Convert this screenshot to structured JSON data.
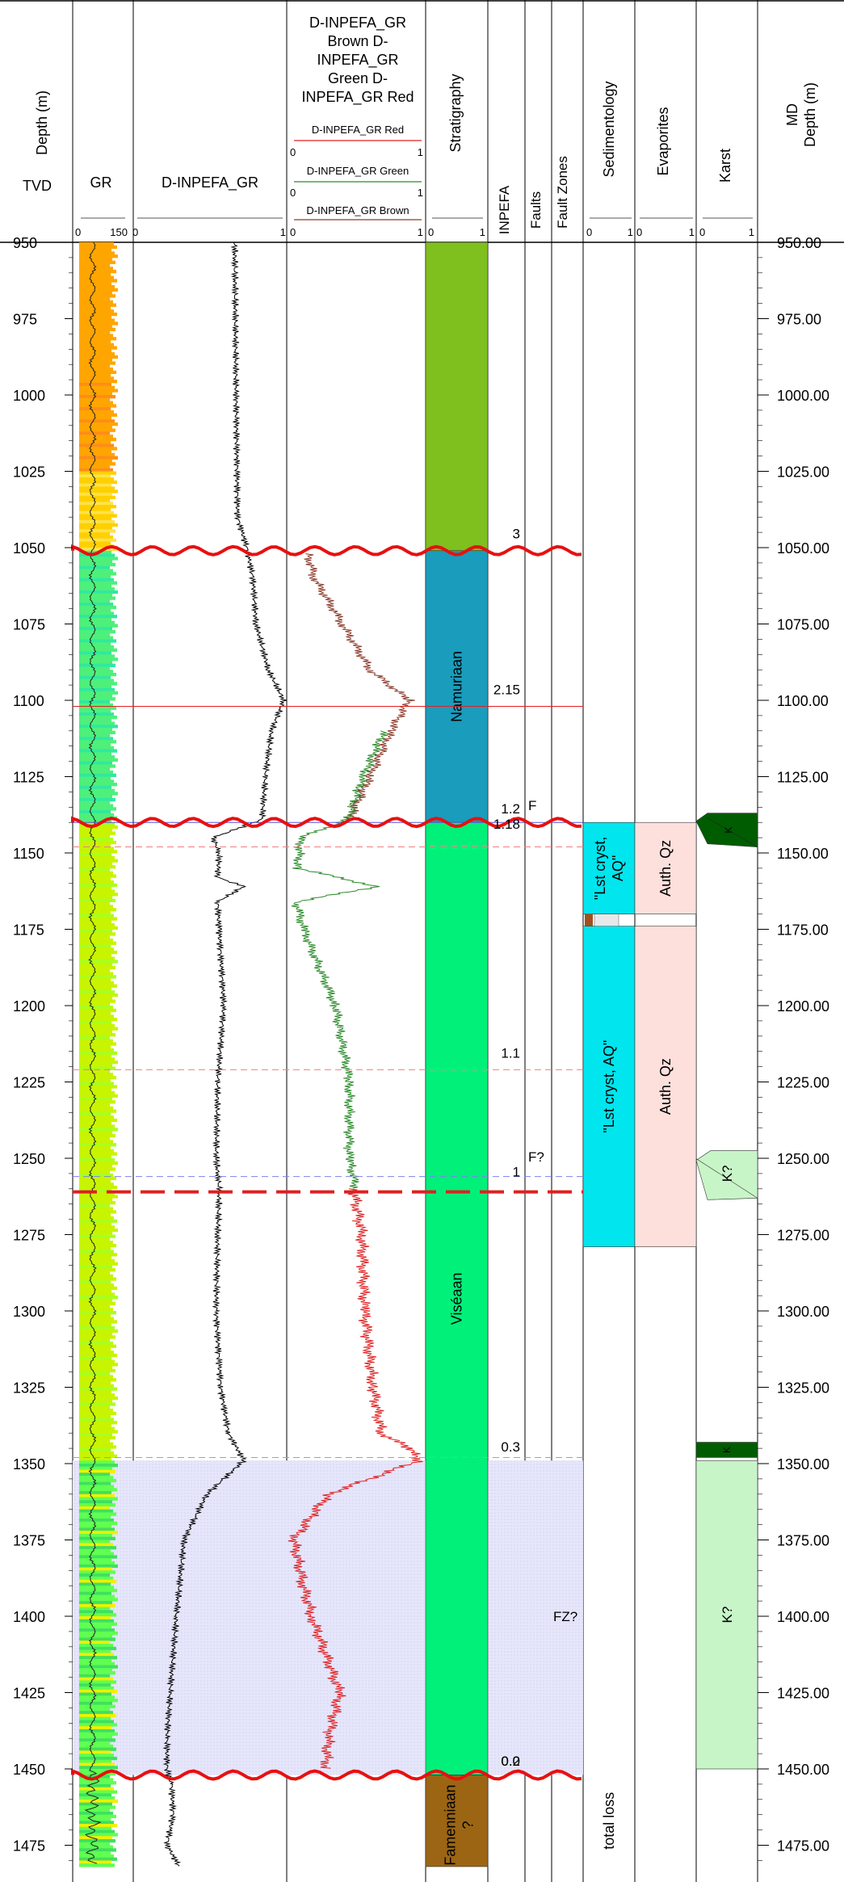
{
  "headers": {
    "tvd_track": {
      "title": "Depth (m)",
      "sub": "TVD"
    },
    "gr_track": {
      "title": "GR",
      "scale_min": "0",
      "scale_max": "150"
    },
    "dinpefa_track": {
      "title": "D-INPEFA_GR",
      "scale_min": "0",
      "scale_max": "1"
    },
    "colored_track": {
      "title_lines": [
        "D-INPEFA_GR",
        "Brown D-",
        "INPEFA_GR",
        "Green D-",
        "INPEFA_GR Red"
      ],
      "legend": [
        {
          "name": "D-INPEFA_GR Red",
          "color": "#e02020",
          "min": "0",
          "max": "1"
        },
        {
          "name": "D-INPEFA_GR Green",
          "color": "#2a8a2a",
          "min": "0",
          "max": "1"
        },
        {
          "name": "D-INPEFA_GR Brown",
          "color": "#8b3a2a",
          "min": "0",
          "max": "1"
        }
      ]
    },
    "strat_track": {
      "title": "Stratigraphy",
      "scale_min": "0",
      "scale_max": "1"
    },
    "inpefa_track": {
      "title": "INPEFA"
    },
    "faults_track": {
      "title": "Faults"
    },
    "faultzones_track": {
      "title": "Fault Zones"
    },
    "sed_track": {
      "title": "Sedimentology",
      "scale_min": "0",
      "scale_max": "1"
    },
    "evap_track": {
      "title": "Evaporites",
      "scale_min": "0",
      "scale_max": "1"
    },
    "karst_track": {
      "title": "Karst",
      "scale_min": "0",
      "scale_max": "1"
    },
    "md_track": {
      "title_lines": [
        "MD",
        "Depth (m)"
      ]
    }
  },
  "depth_range": [
    950,
    1482
  ],
  "tvd_ticks": [
    "950",
    "975",
    "1000",
    "1025",
    "1050",
    "1075",
    "1100",
    "1125",
    "1150",
    "1175",
    "1200",
    "1225",
    "1250",
    "1275",
    "1300",
    "1325",
    "1350",
    "1375",
    "1400",
    "1425",
    "1450",
    "1475"
  ],
  "md_ticks": [
    "950.00",
    "975.00",
    "1000.00",
    "1025.00",
    "1050.00",
    "1075.00",
    "1100.00",
    "1125.00",
    "1150.00",
    "1175.00",
    "1200.00",
    "1225.00",
    "1250.00",
    "1275.00",
    "1300.00",
    "1325.00",
    "1350.00",
    "1375.00",
    "1400.00",
    "1425.00",
    "1450.00",
    "1475.00"
  ],
  "stratigraphy": [
    {
      "top": 950,
      "base": 1051,
      "label": "",
      "color": "#7fbf1e"
    },
    {
      "top": 1051,
      "base": 1140,
      "label": "Namuriaan",
      "color": "#1a9cbc"
    },
    {
      "top": 1140,
      "base": 1452,
      "label": "Viséaan",
      "color": "#00f07a"
    },
    {
      "top": 1452,
      "base": 1482,
      "label_lines": [
        "Famenniaan",
        "?"
      ],
      "color": "#9b6514"
    }
  ],
  "inpefa_labels": [
    {
      "depth": 1047,
      "text": "3"
    },
    {
      "depth": 1098,
      "text": "2.15"
    },
    {
      "depth": 1137,
      "text": "1.2"
    },
    {
      "depth": 1142,
      "text": "1.18"
    },
    {
      "depth": 1217,
      "text": "1.1"
    },
    {
      "depth": 1256,
      "text": "1"
    },
    {
      "depth": 1346,
      "text": "0.3"
    },
    {
      "depth": 1449,
      "text": "0.2"
    },
    {
      "depth": 1449,
      "text": "0.0"
    }
  ],
  "fault_labels": [
    {
      "depth": 1136,
      "text": "F"
    },
    {
      "depth": 1251,
      "text": "F?"
    }
  ],
  "faultzone_label": {
    "depth": 1400,
    "text": "FZ?"
  },
  "sedimentology": [
    {
      "top": 1140,
      "base": 1170,
      "lines": [
        "\"Lst cryst,",
        "AQ\""
      ],
      "color": "#00e5ee"
    },
    {
      "top": 1174,
      "base": 1279,
      "lines": [
        "\"Lst cryst, AQ\""
      ],
      "color": "#00e5ee"
    }
  ],
  "sed_total_loss": {
    "depth": 1467,
    "text": "total loss"
  },
  "evaporites": [
    {
      "top": 1140,
      "base": 1170,
      "text": "Auth. Qz",
      "color": "#fde0dc"
    },
    {
      "top": 1174,
      "base": 1279,
      "text": "Auth. Qz",
      "color": "#fde0dc"
    }
  ],
  "karst": [
    {
      "top": 1138,
      "base": 1147,
      "text": "K",
      "color": "#005c00",
      "style": "fault-dark"
    },
    {
      "top": 1248,
      "base": 1262,
      "text": "K?",
      "color": "#c8f5c8",
      "style": "fault-light"
    },
    {
      "top": 1343,
      "base": 1348,
      "text": "K",
      "color": "#005c00",
      "style": "band"
    },
    {
      "top": 1349,
      "base": 1450,
      "text": "K?",
      "color": "#c8f5c8",
      "style": "band"
    }
  ],
  "unconformities": [
    1051,
    1140,
    1452
  ],
  "horizon_lines": [
    {
      "depth": 1102,
      "style": "solid-red"
    },
    {
      "depth": 1140,
      "style": "solid-blue"
    },
    {
      "depth": 1148,
      "style": "dash-red"
    },
    {
      "depth": 1221,
      "style": "dash-red"
    },
    {
      "depth": 1256,
      "style": "dash-blue"
    },
    {
      "depth": 1261,
      "style": "thick-dash-red"
    },
    {
      "depth": 1348,
      "style": "dash-red"
    }
  ],
  "shaded_interval": {
    "top": 1349,
    "base": 1452,
    "color": "#e4e4fa"
  },
  "curves": {
    "dinpefa_black": [
      [
        950,
        0.66
      ],
      [
        1000,
        0.67
      ],
      [
        1040,
        0.68
      ],
      [
        1050,
        0.74
      ],
      [
        1060,
        0.78
      ],
      [
        1075,
        0.8
      ],
      [
        1090,
        0.88
      ],
      [
        1100,
        0.98
      ],
      [
        1110,
        0.9
      ],
      [
        1125,
        0.86
      ],
      [
        1139,
        0.84
      ],
      [
        1145,
        0.52
      ],
      [
        1150,
        0.56
      ],
      [
        1158,
        0.55
      ],
      [
        1161,
        0.72
      ],
      [
        1166,
        0.55
      ],
      [
        1175,
        0.56
      ],
      [
        1200,
        0.59
      ],
      [
        1225,
        0.55
      ],
      [
        1250,
        0.54
      ],
      [
        1260,
        0.56
      ],
      [
        1275,
        0.55
      ],
      [
        1300,
        0.54
      ],
      [
        1325,
        0.57
      ],
      [
        1340,
        0.62
      ],
      [
        1349,
        0.72
      ],
      [
        1360,
        0.48
      ],
      [
        1375,
        0.33
      ],
      [
        1400,
        0.28
      ],
      [
        1425,
        0.24
      ],
      [
        1440,
        0.22
      ],
      [
        1450,
        0.22
      ],
      [
        1455,
        0.25
      ],
      [
        1465,
        0.26
      ],
      [
        1475,
        0.22
      ],
      [
        1482,
        0.3
      ]
    ],
    "brown": [
      [
        1052,
        0.15
      ],
      [
        1060,
        0.2
      ],
      [
        1075,
        0.4
      ],
      [
        1090,
        0.6
      ],
      [
        1100,
        0.88
      ],
      [
        1110,
        0.75
      ],
      [
        1125,
        0.6
      ],
      [
        1139,
        0.45
      ]
    ],
    "green": [
      [
        1110,
        0.7
      ],
      [
        1125,
        0.55
      ],
      [
        1139,
        0.44
      ],
      [
        1145,
        0.1
      ],
      [
        1155,
        0.08
      ],
      [
        1161,
        0.65
      ],
      [
        1166,
        0.07
      ],
      [
        1175,
        0.12
      ],
      [
        1200,
        0.35
      ],
      [
        1225,
        0.45
      ],
      [
        1250,
        0.45
      ],
      [
        1260,
        0.5
      ]
    ],
    "red": [
      [
        1260,
        0.48
      ],
      [
        1275,
        0.54
      ],
      [
        1300,
        0.56
      ],
      [
        1325,
        0.62
      ],
      [
        1340,
        0.68
      ],
      [
        1345,
        0.88
      ],
      [
        1349,
        0.95
      ],
      [
        1360,
        0.3
      ],
      [
        1375,
        0.05
      ],
      [
        1390,
        0.12
      ],
      [
        1400,
        0.18
      ],
      [
        1425,
        0.38
      ],
      [
        1440,
        0.3
      ],
      [
        1450,
        0.28
      ]
    ]
  },
  "gr_colors": [
    "#ffa500",
    "#ffd000",
    "#80ff40",
    "#c8f400",
    "#d6f000"
  ]
}
